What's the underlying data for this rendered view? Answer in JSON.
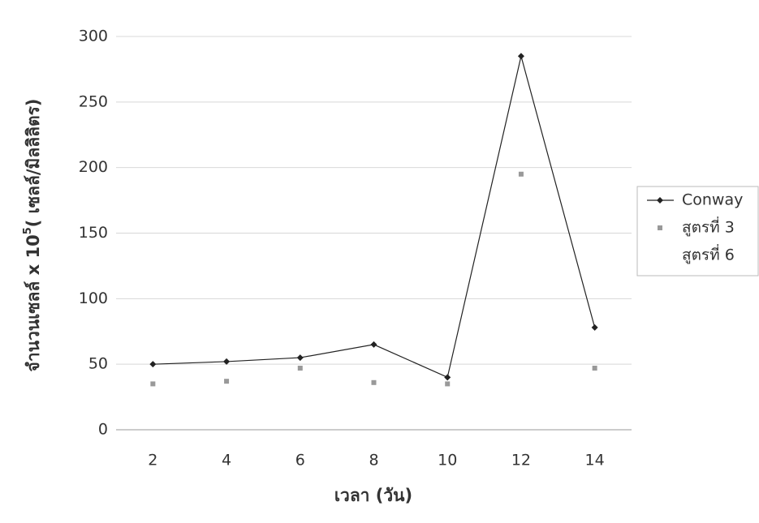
{
  "chart_data": {
    "type": "line",
    "x_label": "เวลา (วัน)",
    "y_label": [
      "จำนวนเซลล์ x 10",
      "5",
      "( เซลล์/มิลลิลิตร)"
    ],
    "categories": [
      "2",
      "4",
      "6",
      "8",
      "10",
      "12",
      "14"
    ],
    "series": [
      {
        "name": "Conway",
        "color": "#222222",
        "line": true,
        "marker": "diamond",
        "values": [
          50,
          52,
          55,
          65,
          40,
          285,
          78
        ]
      },
      {
        "name": "สูตรที่ 3",
        "color": "#999999",
        "line": false,
        "marker": "square",
        "values": [
          35,
          37,
          47,
          36,
          35,
          195,
          47
        ]
      },
      {
        "name": "สูตรที่ 6",
        "color": "#cccccc",
        "line": false,
        "marker": "none",
        "values": [
          null,
          null,
          null,
          null,
          null,
          null,
          null
        ]
      }
    ],
    "ylim": [
      0,
      300
    ],
    "yticks": [
      0,
      50,
      100,
      150,
      200,
      250,
      300
    ],
    "grid": true,
    "legend": "right"
  }
}
